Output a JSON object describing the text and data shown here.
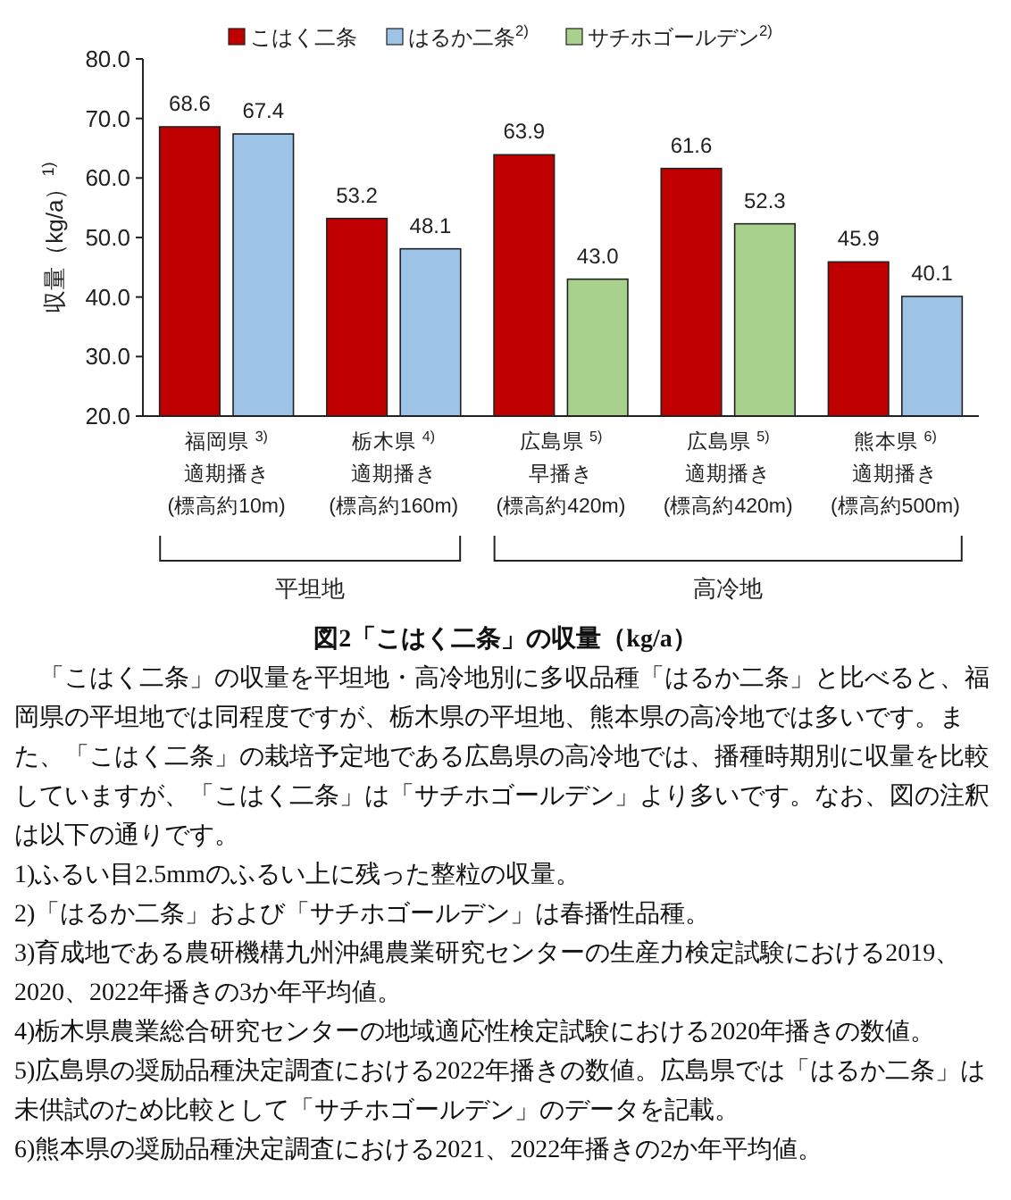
{
  "chart_data": {
    "type": "bar",
    "title": "図2「こはく二条」の収量（kg/a）",
    "ylabel": "収量（kg/a）$^{1)}$",
    "categories": [
      "福岡県 $^{3)}$\n適期播き\n(標高約10m)",
      "栃木県 $^{4)}$\n適期播き\n(標高約160m)",
      "広島県 $^{5)}$\n早播き\n(標高約420m)",
      "広島県 $^{5)}$\n適期播き\n(標高約420m)",
      "熊本県 $^{6)}$\n適期播き\n(標高約500m)"
    ],
    "series": [
      {
        "name": "こはく二条",
        "color": "#c00000",
        "values": [
          68.6,
          53.2,
          63.9,
          61.6,
          45.9
        ],
        "value_labels": [
          "68.6",
          "53.2",
          "63.9",
          "61.6",
          "45.9"
        ]
      },
      {
        "name": "はるか二条$^{2)}$",
        "color": "#9dc3e6",
        "values": [
          67.4,
          48.1,
          null,
          null,
          40.1
        ],
        "value_labels": [
          "67.4",
          "48.1",
          null,
          null,
          "40.1"
        ]
      },
      {
        "name": "サチホゴールデン$^{2)}$",
        "color": "#a9d18e",
        "values": [
          null,
          null,
          43.0,
          52.3,
          null
        ],
        "value_labels": [
          null,
          null,
          "43.0",
          "52.3",
          null
        ]
      }
    ],
    "ylim": [
      20,
      80
    ],
    "yticks": [
      {
        "value": 20,
        "label": "20.0"
      },
      {
        "value": 30,
        "label": "30.0"
      },
      {
        "value": 40,
        "label": "40.0"
      },
      {
        "value": 50,
        "label": "50.0"
      },
      {
        "value": 60,
        "label": "60.0"
      },
      {
        "value": 70,
        "label": "70.0"
      },
      {
        "value": 80,
        "label": "80.0"
      }
    ],
    "legend": "top",
    "grid": false,
    "annotations": [
      "平坦地",
      "高冷地",
      "「こはく二条」の収量を平坦地・高冷地別に多収品種「はるか二条」と比べると、福岡県の平坦地では同程度ですが、栃木県の平坦地、熊本県の高冷地では多いです。また、「こはく二条」の栽培予定地である広島県の高冷地では、播種時期別に収量を比較していますが、「こはく二条」は「サチホゴールデン」より多いです。なお、図の注釈は以下の通りです。",
      "1)ふるい目2.5mmのふるい上に残った整粒の収量。",
      "2)「はるか二条」および「サチホゴールデン」は春播性品種。",
      "3)育成地である農研機構九州沖縄農業研究センターの生産力検定試験における2019、2020、2022年播きの3か年平均値。",
      "4)栃木県農業総合研究センターの地域適応性検定試験における2020年播きの数値。",
      "5)広島県の奨励品種決定調査における2022年播きの数値。広島県では「はるか二条」は未供試のため比較として「サチホゴールデン」のデータを記載。",
      "6)熊本県の奨励品種決定調査における2021、2022年播きの2か年平均値。"
    ]
  }
}
